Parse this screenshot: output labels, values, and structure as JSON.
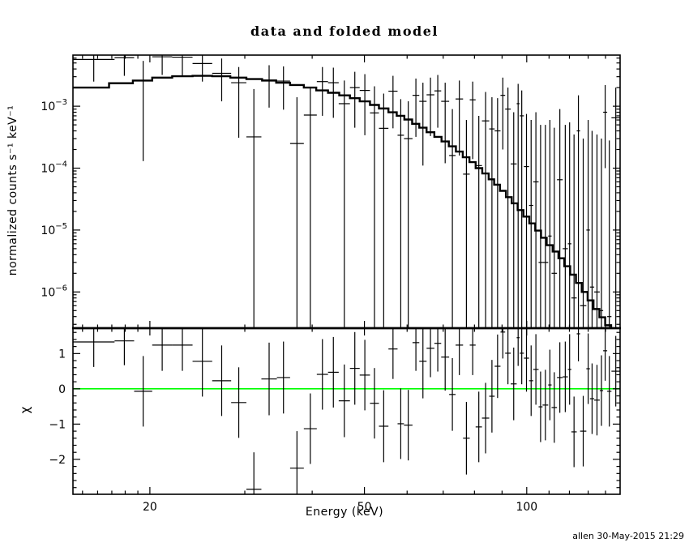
{
  "title": "data and folded model",
  "signature": "allen 30-May-2015 21:29",
  "labels": {
    "y_top": "normalized counts s⁻¹ keV⁻¹",
    "y_bottom": "χ",
    "x": "Energy (keV)"
  },
  "colors": {
    "foreground": "#000000",
    "zero_line": "#00ff00",
    "background": "#ffffff"
  },
  "chart_data": {
    "type": "line",
    "title": "data and folded model",
    "xlabel": "Energy (keV)",
    "x_scale": "log",
    "xlim": [
      14.4,
      149
    ],
    "x_major_ticks": [
      {
        "value": 20,
        "label": "20"
      },
      {
        "value": 50,
        "label": "50"
      },
      {
        "value": 100,
        "label": "100"
      }
    ],
    "x_minor_ticks": [
      15,
      16,
      17,
      18,
      19,
      30,
      40,
      60,
      70,
      80,
      90,
      110,
      120,
      130,
      140
    ],
    "top_panel": {
      "ylabel": "normalized counts s-1 keV-1",
      "y_scale": "log",
      "ylim": [
        2.6e-07,
        0.0067
      ],
      "y_major_ticks": [
        {
          "value": 0.001,
          "base": "10",
          "exp": "−3"
        },
        {
          "value": 0.0001,
          "base": "10",
          "exp": "−4"
        },
        {
          "value": 1e-05,
          "base": "10",
          "exp": "−5"
        },
        {
          "value": 1e-06,
          "base": "10",
          "exp": "−6"
        }
      ],
      "model_step_edges": [
        14.4,
        16.8,
        18.6,
        20.2,
        22,
        24,
        26.1,
        28.2,
        30.2,
        32.3,
        34.3,
        36.4,
        38.6,
        40.7,
        42.8,
        44.9,
        47,
        49,
        51.2,
        53.2,
        55.4,
        57.4,
        59.3,
        61.3,
        63.2,
        65.2,
        67.4,
        69.5,
        71.7,
        73.9,
        76.1,
        78.3,
        80.4,
        82.7,
        85,
        87,
        89.2,
        91.5,
        93.8,
        96.2,
        98.6,
        101.1,
        103.7,
        106.3,
        108.9,
        111.7,
        114.5,
        117.4,
        120.4,
        123.4,
        126.5,
        129.7,
        133,
        136.4,
        139.8,
        143.4,
        149
      ],
      "model_step_values": [
        0.002,
        0.00235,
        0.0026,
        0.0029,
        0.00305,
        0.0031,
        0.00305,
        0.0029,
        0.00275,
        0.0026,
        0.0024,
        0.0022,
        0.002,
        0.0018,
        0.00165,
        0.0015,
        0.00135,
        0.0012,
        0.00105,
        0.00092,
        0.0008,
        0.0007,
        0.00061,
        0.00052,
        0.00045,
        0.00038,
        0.00032,
        0.00027,
        0.000225,
        0.000185,
        0.00015,
        0.000125,
        0.0001,
        8.2e-05,
        6.6e-05,
        5.4e-05,
        4.3e-05,
        3.4e-05,
        2.7e-05,
        2.1e-05,
        1.65e-05,
        1.28e-05,
        9.8e-06,
        7.5e-06,
        5.7e-06,
        4.5e-06,
        3.5e-06,
        2.6e-06,
        1.9e-06,
        1.4e-06,
        1e-06,
        7.3e-07,
        5.3e-07,
        3.9e-07,
        2.9e-07,
        2.2e-07
      ]
    },
    "bottom_panel": {
      "ylabel": "chi",
      "y_scale": "linear",
      "ylim": [
        -2.99,
        1.72
      ],
      "y_major_ticks": [
        {
          "value": 1,
          "label": "1"
        },
        {
          "value": 0,
          "label": "0"
        },
        {
          "value": -1,
          "label": "−1"
        },
        {
          "value": -2,
          "label": "−2"
        }
      ],
      "y_minor_step": 0.2,
      "zero_line_value": 0
    },
    "points_format": [
      "e_min",
      "e_max",
      "value",
      "err_hi_value",
      "err_lo_value",
      "chi",
      "chi_err"
    ],
    "points": [
      [
        14.4,
        17.2,
        0.0057,
        null,
        0.0025,
        1.33,
        0.71
      ],
      [
        17.2,
        18.7,
        0.0061,
        null,
        0.0031,
        1.36,
        0.69
      ],
      [
        18.7,
        20.2,
        0.0026,
        0.0054,
        0.00013,
        -0.07,
        1.0
      ],
      [
        20.2,
        22.0,
        0.0063,
        null,
        0.0032,
        1.24,
        0.73
      ],
      [
        22.0,
        24.0,
        0.0062,
        null,
        0.0031,
        1.24,
        0.73
      ],
      [
        24.0,
        26.1,
        0.0049,
        0.0076,
        0.0025,
        0.78,
        1.0
      ],
      [
        26.1,
        28.3,
        0.0034,
        0.0059,
        0.0012,
        0.23,
        1.0
      ],
      [
        28.3,
        30.2,
        0.0024,
        0.0043,
        0.00031,
        -0.39,
        1.0
      ],
      [
        30.2,
        32.2,
        0.00032,
        0.0019,
        null,
        -2.85,
        1.05
      ],
      [
        32.2,
        34.4,
        0.00265,
        0.0046,
        0.00095,
        0.28,
        1.03
      ],
      [
        34.4,
        36.4,
        0.00255,
        0.0044,
        0.00088,
        0.32,
        1.02
      ],
      [
        36.4,
        38.6,
        0.00025,
        0.0014,
        null,
        -2.25,
        1.05
      ],
      [
        38.6,
        40.8,
        0.00072,
        0.002,
        null,
        -1.13,
        1.0
      ],
      [
        40.8,
        42.8,
        0.0025,
        0.0043,
        0.0007,
        0.41,
        1.0
      ],
      [
        42.8,
        44.8,
        0.0024,
        0.0042,
        0.00065,
        0.47,
        1.0
      ],
      [
        44.8,
        47.0,
        0.0011,
        0.0026,
        null,
        -0.34,
        1.03
      ],
      [
        47.0,
        49.0,
        0.002,
        0.0036,
        0.00045,
        0.58,
        1.03
      ],
      [
        49.0,
        51.2,
        0.0018,
        0.0033,
        0.00034,
        0.39,
        1.0
      ],
      [
        51.2,
        53.2,
        0.00078,
        0.0021,
        null,
        -0.41,
        1.0
      ],
      [
        53.2,
        55.4,
        0.00044,
        0.0016,
        null,
        -1.06,
        1.02
      ],
      [
        55.4,
        57.6,
        0.00175,
        0.0031,
        0.00044,
        1.13,
        0.85
      ],
      [
        57.6,
        59.2,
        0.00034,
        0.0013,
        null,
        -0.99,
        1.0
      ],
      [
        59.2,
        61.4,
        0.0003,
        0.0012,
        null,
        -1.03,
        1.0
      ],
      [
        61.4,
        63.2,
        0.0015,
        0.0028,
        0.00032,
        1.31,
        0.8
      ],
      [
        63.2,
        65.2,
        0.0012,
        0.0024,
        0.00011,
        0.78,
        1.05
      ],
      [
        65.2,
        67.4,
        0.00153,
        0.0029,
        0.00033,
        1.15,
        0.82
      ],
      [
        67.4,
        69.4,
        0.00177,
        0.0032,
        0.00045,
        1.29,
        0.8
      ],
      [
        69.4,
        71.8,
        0.0012,
        0.0024,
        0.00012,
        0.9,
        0.95
      ],
      [
        71.8,
        73.8,
        0.00016,
        0.0009,
        null,
        -0.16,
        1.03
      ],
      [
        73.8,
        76.2,
        0.00131,
        0.0026,
        0.00016,
        1.24,
        0.85
      ],
      [
        76.2,
        78.4,
        8e-05,
        0.0006,
        null,
        -1.4,
        1.03
      ],
      [
        78.4,
        80.4,
        0.00127,
        0.0025,
        0.00014,
        1.24,
        0.85
      ],
      [
        80.4,
        82.6,
        0.00011,
        0.0007,
        null,
        -1.08,
        1.0
      ],
      [
        82.6,
        85.2,
        0.00058,
        0.0017,
        null,
        -0.83,
        1.0
      ],
      [
        85.2,
        87.2,
        0.00043,
        0.0014,
        null,
        -0.21,
        1.03
      ],
      [
        87.2,
        89.4,
        0.0004,
        0.00135,
        null,
        0.64,
        0.9
      ],
      [
        89.4,
        91.2,
        0.0015,
        0.0029,
        0.0002,
        1.61,
        0.75
      ],
      [
        91.2,
        93.4,
        0.0009,
        0.002,
        null,
        1.01,
        0.88
      ],
      [
        93.4,
        95.8,
        0.000117,
        0.0008,
        null,
        0.14,
        1.03
      ],
      [
        95.8,
        97.0,
        0.0011,
        0.0023,
        null,
        1.45,
        0.8
      ],
      [
        97.0,
        98.8,
        0.0007,
        0.0018,
        null,
        1.01,
        0.88
      ],
      [
        98.8,
        101.0,
        0.000106,
        0.00075,
        null,
        0.87,
        0.95
      ],
      [
        101.0,
        102.8,
        2.5e-05,
        0.0006,
        null,
        0.23,
        1.0
      ],
      [
        102.8,
        105.2,
        6e-05,
        0.0008,
        null,
        0.55,
        1.0
      ],
      [
        105.2,
        107.0,
        3e-06,
        0.0005,
        null,
        -0.51,
        1.0
      ],
      [
        107.0,
        109.6,
        3e-06,
        0.0005,
        null,
        -0.46,
        1.0
      ],
      [
        109.6,
        111.2,
        8e-06,
        0.0006,
        null,
        0.11,
        1.0
      ],
      [
        111.2,
        113.8,
        2e-06,
        0.00045,
        null,
        -0.53,
        1.0
      ],
      [
        113.8,
        116.6,
        6.5e-05,
        0.0009,
        null,
        0.32,
        1.0
      ],
      [
        116.6,
        119.2,
        5e-06,
        0.0005,
        null,
        0.34,
        1.0
      ],
      [
        119.2,
        121.0,
        6e-06,
        0.00055,
        null,
        0.55,
        1.0
      ],
      [
        121.0,
        123.8,
        8e-07,
        0.00035,
        null,
        -1.22,
        1.0
      ],
      [
        123.8,
        125.6,
        0.0004,
        0.0015,
        null,
        1.56,
        0.78
      ],
      [
        125.6,
        129.0,
        6e-07,
        0.0003,
        null,
        -1.2,
        1.0
      ],
      [
        129.0,
        131.0,
        1e-05,
        0.0006,
        null,
        0.57,
        1.0
      ],
      [
        131.0,
        133.4,
        1.2e-06,
        0.0004,
        null,
        -0.28,
        1.0
      ],
      [
        133.4,
        136.6,
        1e-06,
        0.00035,
        null,
        -0.32,
        1.0
      ],
      [
        136.6,
        138.6,
        5e-07,
        0.0003,
        null,
        -0.05,
        1.0
      ],
      [
        138.6,
        141.0,
        0.0008,
        0.0022,
        0.0001,
        1.08,
        0.85
      ],
      [
        141.0,
        143.6,
        4e-07,
        0.00028,
        null,
        -0.07,
        1.0
      ],
      [
        143.6,
        149.0,
        0.00065,
        0.002,
        null,
        0.5,
        1.0
      ]
    ]
  }
}
